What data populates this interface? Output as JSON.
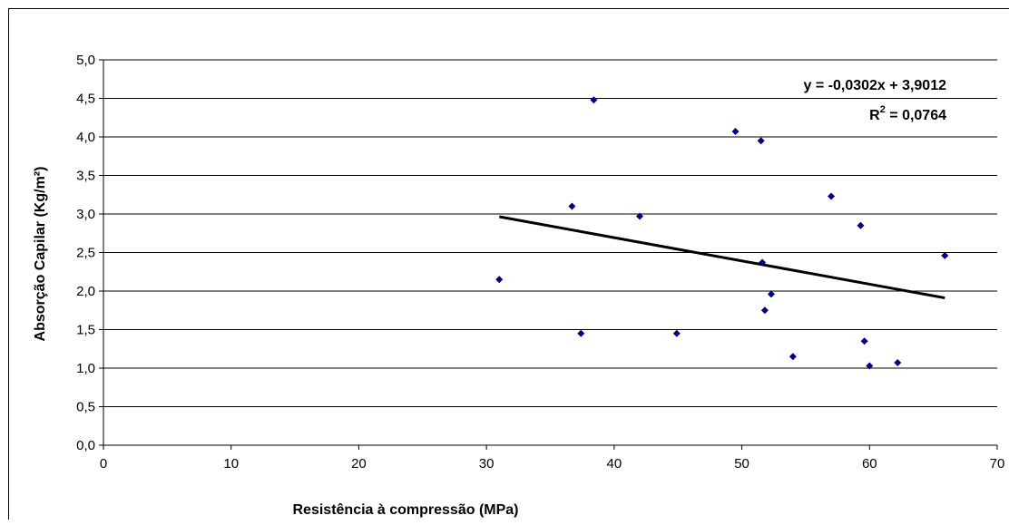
{
  "chart_data": {
    "type": "scatter",
    "title": "",
    "xlabel": "Resistência à compressão (MPa)",
    "ylabel": "Absorção Capilar (Kg/m²)",
    "xlim": [
      0,
      70
    ],
    "ylim": [
      0,
      5
    ],
    "x_ticks": [
      "0",
      "10",
      "20",
      "30",
      "40",
      "50",
      "60",
      "70"
    ],
    "y_ticks": [
      "0,0",
      "0,5",
      "1,0",
      "1,5",
      "2,0",
      "2,5",
      "3,0",
      "3,5",
      "4,0",
      "4,5",
      "5,0"
    ],
    "grid": "horizontal",
    "series": [
      {
        "marker_color": "#000080",
        "points": [
          {
            "x": 31.0,
            "y": 2.15
          },
          {
            "x": 36.7,
            "y": 3.1
          },
          {
            "x": 37.4,
            "y": 1.45
          },
          {
            "x": 38.4,
            "y": 4.48
          },
          {
            "x": 42.0,
            "y": 2.97
          },
          {
            "x": 44.9,
            "y": 1.45
          },
          {
            "x": 49.5,
            "y": 4.07
          },
          {
            "x": 51.5,
            "y": 3.95
          },
          {
            "x": 51.6,
            "y": 2.37
          },
          {
            "x": 51.8,
            "y": 1.75
          },
          {
            "x": 52.3,
            "y": 1.96
          },
          {
            "x": 54.0,
            "y": 1.15
          },
          {
            "x": 57.0,
            "y": 3.23
          },
          {
            "x": 59.3,
            "y": 2.85
          },
          {
            "x": 59.6,
            "y": 1.35
          },
          {
            "x": 60.0,
            "y": 1.03
          },
          {
            "x": 62.2,
            "y": 1.07
          },
          {
            "x": 65.9,
            "y": 2.46
          }
        ]
      }
    ],
    "trendline": {
      "slope": -0.0302,
      "intercept": 3.9012,
      "x_range": [
        31.0,
        65.9
      ],
      "color": "#000000",
      "equation_label": "y = -0,0302x + 3,9012",
      "r2_prefix": "R",
      "r2_superscript": "2",
      "r2_value": " = 0,0764"
    }
  }
}
